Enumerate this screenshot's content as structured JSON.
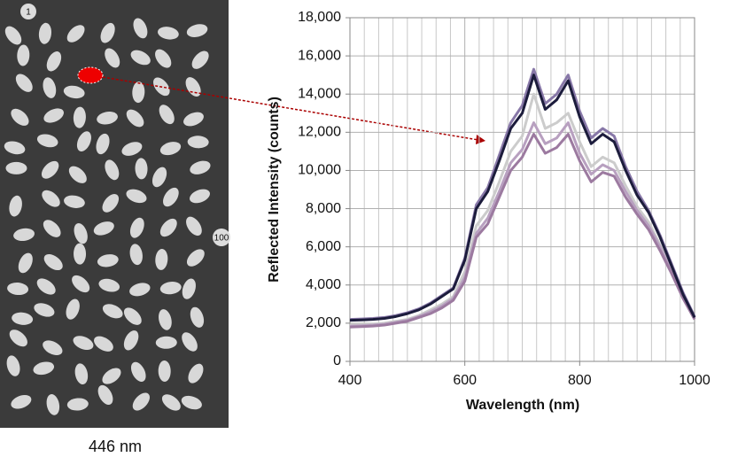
{
  "chart_data": {
    "type": "line",
    "x_label": "Wavelength (nm)",
    "y_label": "Reflected Intensity (counts)",
    "x": [
      400,
      420,
      440,
      460,
      480,
      500,
      520,
      540,
      560,
      580,
      600,
      620,
      640,
      660,
      680,
      700,
      720,
      740,
      760,
      780,
      800,
      820,
      840,
      860,
      880,
      900,
      920,
      940,
      960,
      980,
      1000
    ],
    "series": [
      {
        "color": "#8878a8",
        "values": [
          2200,
          2220,
          2250,
          2300,
          2400,
          2550,
          2750,
          3050,
          3450,
          3850,
          5400,
          8200,
          9100,
          10800,
          12500,
          13400,
          15300,
          13500,
          14000,
          15000,
          13100,
          11700,
          12200,
          11800,
          10200,
          8900,
          7900,
          6600,
          5100,
          3600,
          2350
        ]
      },
      {
        "color": "#cccccc",
        "values": [
          1900,
          1920,
          1950,
          2000,
          2100,
          2200,
          2400,
          2700,
          3000,
          3400,
          4700,
          7100,
          7900,
          9400,
          11000,
          11800,
          14000,
          12200,
          12500,
          13000,
          11500,
          10200,
          10700,
          10400,
          9200,
          8100,
          7300,
          6100,
          4800,
          3400,
          2300
        ]
      },
      {
        "color": "#b8a0c0",
        "values": [
          1850,
          1870,
          1900,
          1950,
          2050,
          2150,
          2350,
          2600,
          2900,
          3300,
          4400,
          6700,
          7500,
          8900,
          10400,
          11100,
          12500,
          11400,
          11700,
          12500,
          10900,
          9800,
          10300,
          10000,
          8900,
          7900,
          7100,
          6000,
          4700,
          3300,
          2250
        ]
      },
      {
        "color": "#9c7aa0",
        "values": [
          1800,
          1820,
          1850,
          1900,
          2000,
          2100,
          2300,
          2500,
          2800,
          3200,
          4200,
          6500,
          7200,
          8600,
          10000,
          10700,
          11900,
          10900,
          11200,
          11900,
          10500,
          9400,
          9900,
          9700,
          8600,
          7700,
          6900,
          5800,
          4600,
          3300,
          2200
        ]
      },
      {
        "color": "#1c1c3c",
        "values": [
          2150,
          2170,
          2200,
          2250,
          2350,
          2500,
          2700,
          3000,
          3400,
          3800,
          5300,
          8000,
          8900,
          10500,
          12200,
          13000,
          15000,
          13200,
          13700,
          14700,
          12800,
          11400,
          11900,
          11500,
          10000,
          8700,
          7800,
          6500,
          5000,
          3500,
          2300
        ]
      }
    ],
    "xlim": [
      400,
      1000
    ],
    "xticks": [
      400,
      600,
      800,
      1000
    ],
    "xminorticks": [
      425,
      450,
      475,
      500,
      525,
      550,
      575,
      625,
      650,
      675,
      700,
      725,
      750,
      775,
      825,
      850,
      875,
      900,
      925,
      950,
      975
    ],
    "ylim": [
      0,
      18000
    ],
    "yticks": [
      0,
      {
        "value": 2000,
        "label": "2,000"
      },
      {
        "value": 4000,
        "label": "4,000"
      },
      {
        "value": 6000,
        "label": "6,000"
      },
      {
        "value": 8000,
        "label": "8,000"
      },
      {
        "value": 10000,
        "label": "10,000"
      },
      {
        "value": 12000,
        "label": "12,000"
      },
      {
        "value": 14000,
        "label": "14,000"
      },
      {
        "value": 16000,
        "label": "16,000"
      },
      {
        "value": 18000,
        "label": "18,000"
      }
    ],
    "grid": true
  },
  "image": {
    "caption": "446 nm",
    "first_marker": "1",
    "last_marker": "100"
  }
}
